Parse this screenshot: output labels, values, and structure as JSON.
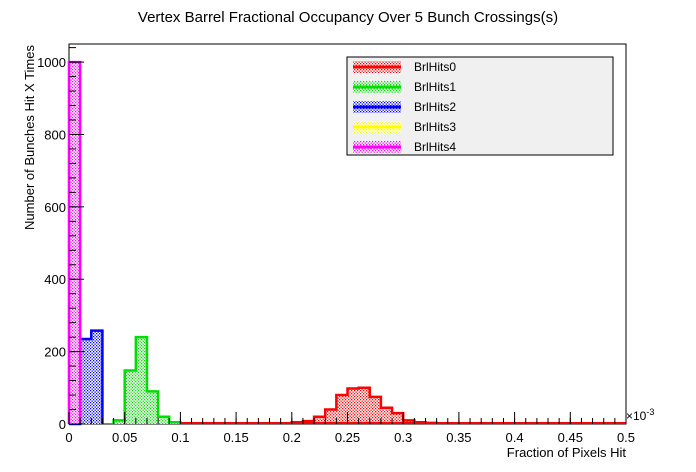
{
  "chart_data": {
    "type": "bar",
    "title": "Vertex Barrel Fractional Occupancy Over 5 Bunch Crossings(s)",
    "xlabel": "Fraction of Pixels Hit",
    "ylabel": "Number of Bunches Hit X Times",
    "x_exponent_label": "×10",
    "x_exponent_power": "-3",
    "xlim": [
      0,
      0.5
    ],
    "ylim": [
      0,
      1050
    ],
    "bin_width": 0.01,
    "x_ticks": [
      "0",
      "0.05",
      "0.1",
      "0.15",
      "0.2",
      "0.25",
      "0.3",
      "0.35",
      "0.4",
      "0.45",
      "0.5"
    ],
    "y_ticks": [
      "0",
      "200",
      "400",
      "600",
      "800",
      "1000"
    ],
    "legend_position": "top-right",
    "series": [
      {
        "name": "BrlHits0",
        "color": "#ff0000",
        "bins": [
          {
            "x": 0.205,
            "y": 5
          },
          {
            "x": 0.215,
            "y": 8
          },
          {
            "x": 0.225,
            "y": 20
          },
          {
            "x": 0.235,
            "y": 40
          },
          {
            "x": 0.245,
            "y": 80
          },
          {
            "x": 0.255,
            "y": 98
          },
          {
            "x": 0.265,
            "y": 100
          },
          {
            "x": 0.275,
            "y": 75
          },
          {
            "x": 0.285,
            "y": 45
          },
          {
            "x": 0.295,
            "y": 30
          },
          {
            "x": 0.305,
            "y": 10
          },
          {
            "x": 0.315,
            "y": 5
          },
          {
            "x": 0.325,
            "y": 3
          }
        ]
      },
      {
        "name": "BrlHits1",
        "color": "#00dd00",
        "bins": [
          {
            "x": 0.045,
            "y": 10
          },
          {
            "x": 0.055,
            "y": 148
          },
          {
            "x": 0.065,
            "y": 240
          },
          {
            "x": 0.075,
            "y": 90
          },
          {
            "x": 0.085,
            "y": 20
          },
          {
            "x": 0.095,
            "y": 5
          }
        ]
      },
      {
        "name": "BrlHits2",
        "color": "#0000ff",
        "bins": [
          {
            "x": 0.005,
            "y": 0
          },
          {
            "x": 0.015,
            "y": 235
          },
          {
            "x": 0.025,
            "y": 258
          }
        ]
      },
      {
        "name": "BrlHits3",
        "color": "#ffff00",
        "bins": [
          {
            "x": 0.005,
            "y": 500
          }
        ]
      },
      {
        "name": "BrlHits4",
        "color": "#ff00ff",
        "bins": [
          {
            "x": 0.005,
            "y": 1000
          }
        ]
      }
    ]
  }
}
